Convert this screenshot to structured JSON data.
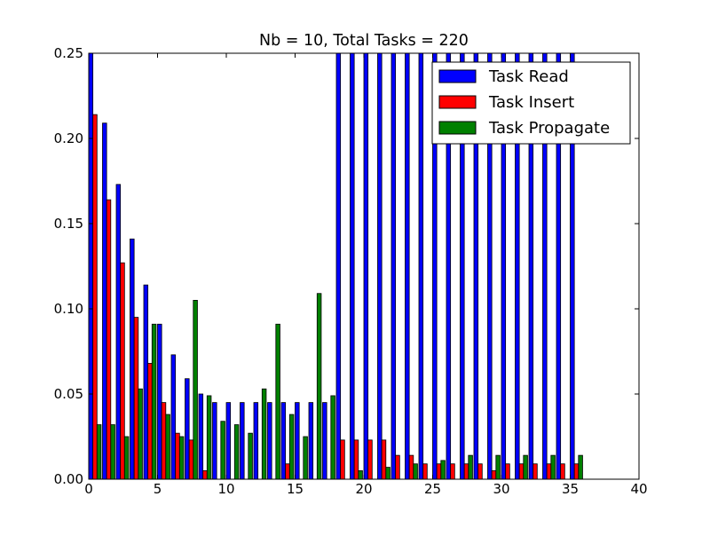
{
  "chart_data": {
    "type": "bar",
    "title": "Nb = 10, Total Tasks = 220",
    "xlabel": "",
    "ylabel": "",
    "xlim": [
      0,
      40
    ],
    "ylim": [
      0,
      0.25
    ],
    "grid": false,
    "legend_position": "top-right",
    "x_ticks": [
      0,
      5,
      10,
      15,
      20,
      25,
      30,
      35,
      40
    ],
    "x_tick_labels": [
      "0",
      "5",
      "10",
      "15",
      "20",
      "25",
      "30",
      "35",
      "40"
    ],
    "y_ticks": [
      0,
      0.05,
      0.1,
      0.15,
      0.2,
      0.25
    ],
    "y_tick_labels": [
      "0.00",
      "0.05",
      "0.10",
      "0.15",
      "0.20",
      "0.25"
    ],
    "x": [
      0,
      1,
      2,
      3,
      4,
      5,
      6,
      7,
      8,
      9,
      10,
      11,
      12,
      13,
      14,
      15,
      16,
      17,
      18,
      19,
      20,
      21,
      22,
      23,
      24,
      25,
      26,
      27,
      28,
      29,
      30,
      31,
      32,
      33,
      34,
      35
    ],
    "bar_width": 0.3,
    "series": [
      {
        "name": "Task Read",
        "color": "#0000ff",
        "values": [
          0.25,
          0.209,
          0.173,
          0.141,
          0.114,
          0.091,
          0.073,
          0.059,
          0.05,
          0.045,
          0.045,
          0.045,
          0.045,
          0.045,
          0.045,
          0.045,
          0.045,
          0.045,
          0.25,
          0.25,
          0.25,
          0.25,
          0.25,
          0.25,
          0.25,
          0.25,
          0.25,
          0.25,
          0.25,
          0.25,
          0.25,
          0.25,
          0.25,
          0.25,
          0.25,
          0.25
        ]
      },
      {
        "name": "Task Insert",
        "color": "#ff0000",
        "values": [
          0.214,
          0.164,
          0.127,
          0.095,
          0.068,
          0.045,
          0.027,
          0.023,
          0.005,
          0.0,
          0.0,
          0.0,
          0.0,
          0.0,
          0.009,
          0.0,
          0.0,
          0.0,
          0.023,
          0.023,
          0.023,
          0.023,
          0.014,
          0.014,
          0.009,
          0.009,
          0.009,
          0.009,
          0.009,
          0.005,
          0.009,
          0.009,
          0.009,
          0.009,
          0.009,
          0.009
        ]
      },
      {
        "name": "Task Propagate",
        "color": "#008000",
        "values": [
          0.032,
          0.032,
          0.025,
          0.053,
          0.091,
          0.038,
          0.025,
          0.105,
          0.049,
          0.034,
          0.032,
          0.027,
          0.053,
          0.091,
          0.038,
          0.025,
          0.109,
          0.049,
          0.0,
          0.005,
          0.0,
          0.007,
          0.0,
          0.009,
          0.0,
          0.011,
          0.0,
          0.014,
          0.0,
          0.014,
          0.0,
          0.014,
          0.0,
          0.014,
          0.0,
          0.014
        ]
      }
    ]
  }
}
